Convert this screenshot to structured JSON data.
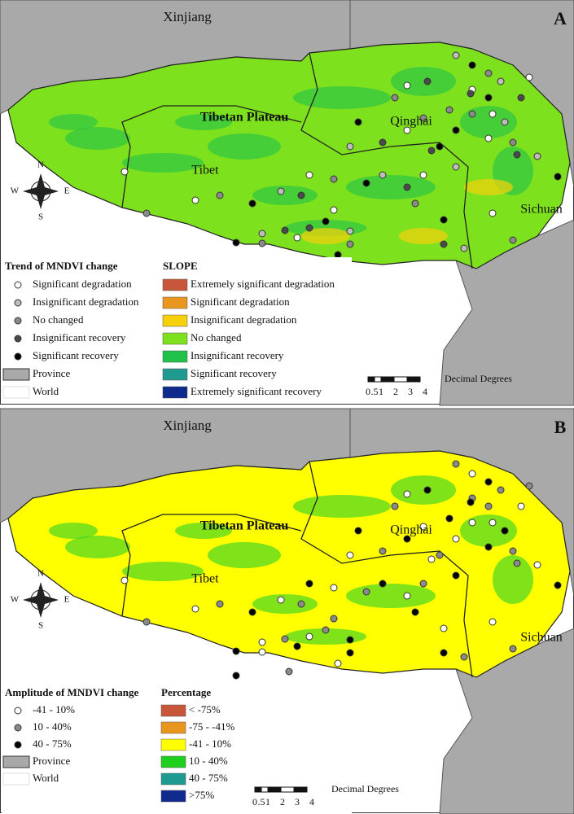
{
  "panels": [
    {
      "letter": "A",
      "places": {
        "xinjiang": "Xinjiang",
        "plateau": "Tibetan Plateau",
        "qinghai": "Qinghai",
        "tibet": "Tibet",
        "sichuan": "Sichuan"
      },
      "compass": {
        "n": "N",
        "s": "S",
        "w": "W",
        "e": "E"
      },
      "dot_legend": {
        "title": "Trend of MNDVI change",
        "items": [
          {
            "label": "Significant degradation",
            "color": "#ffffff"
          },
          {
            "label": "Insignificant degradation",
            "color": "#bdbdbd"
          },
          {
            "label": "No changed",
            "color": "#8a8a8a"
          },
          {
            "label": "Insignificant recovery",
            "color": "#4a4a4a"
          },
          {
            "label": "Significant recovery",
            "color": "#000000"
          }
        ]
      },
      "boundary_legend": {
        "province": "Province",
        "world": "World"
      },
      "color_legend": {
        "title": "SLOPE",
        "items": [
          {
            "label": "Extremely significant degradation",
            "color": "#c8563a"
          },
          {
            "label": "Significant degradation",
            "color": "#e8961e"
          },
          {
            "label": "Insignificant degradation",
            "color": "#f6d10a"
          },
          {
            "label": "No changed",
            "color": "#7ee11e"
          },
          {
            "label": "Insignificant recovery",
            "color": "#21c24a"
          },
          {
            "label": "Significant recovery",
            "color": "#1e9a90"
          },
          {
            "label": "Extremely significant recovery",
            "color": "#0e2a8c"
          }
        ]
      },
      "scale": {
        "ticks": [
          "0",
          ".5",
          "1",
          "2",
          "3",
          "4"
        ],
        "unit": "Decimal Degrees"
      }
    },
    {
      "letter": "B",
      "places": {
        "xinjiang": "Xinjiang",
        "plateau": "Tibetan Plateau",
        "qinghai": "Qinghai",
        "tibet": "Tibet",
        "sichuan": "Sichuan"
      },
      "compass": {
        "n": "N",
        "s": "S",
        "w": "W",
        "e": "E"
      },
      "dot_legend": {
        "title": "Amplitude of MNDVI change",
        "items": [
          {
            "label": "-41 - 10%",
            "color": "#ffffff"
          },
          {
            "label": "10 - 40%",
            "color": "#8a8a8a"
          },
          {
            "label": "40 - 75%",
            "color": "#000000"
          }
        ]
      },
      "boundary_legend": {
        "province": "Province",
        "world": "World"
      },
      "color_legend": {
        "title": "Percentage",
        "items": [
          {
            "label": "< -75%",
            "color": "#c8563a"
          },
          {
            "label": "-75 - -41%",
            "color": "#e8961e"
          },
          {
            "label": "-41 - 10%",
            "color": "#ffff00"
          },
          {
            "label": "10 - 40%",
            "color": "#1ecf1e"
          },
          {
            "label": "40 - 75%",
            "color": "#1e9a90"
          },
          {
            "label": ">75%",
            "color": "#0e2a8c"
          }
        ]
      },
      "scale": {
        "ticks": [
          "0",
          ".5",
          "1",
          "2",
          "3",
          "4"
        ],
        "unit": "Decimal Degrees"
      }
    }
  ]
}
